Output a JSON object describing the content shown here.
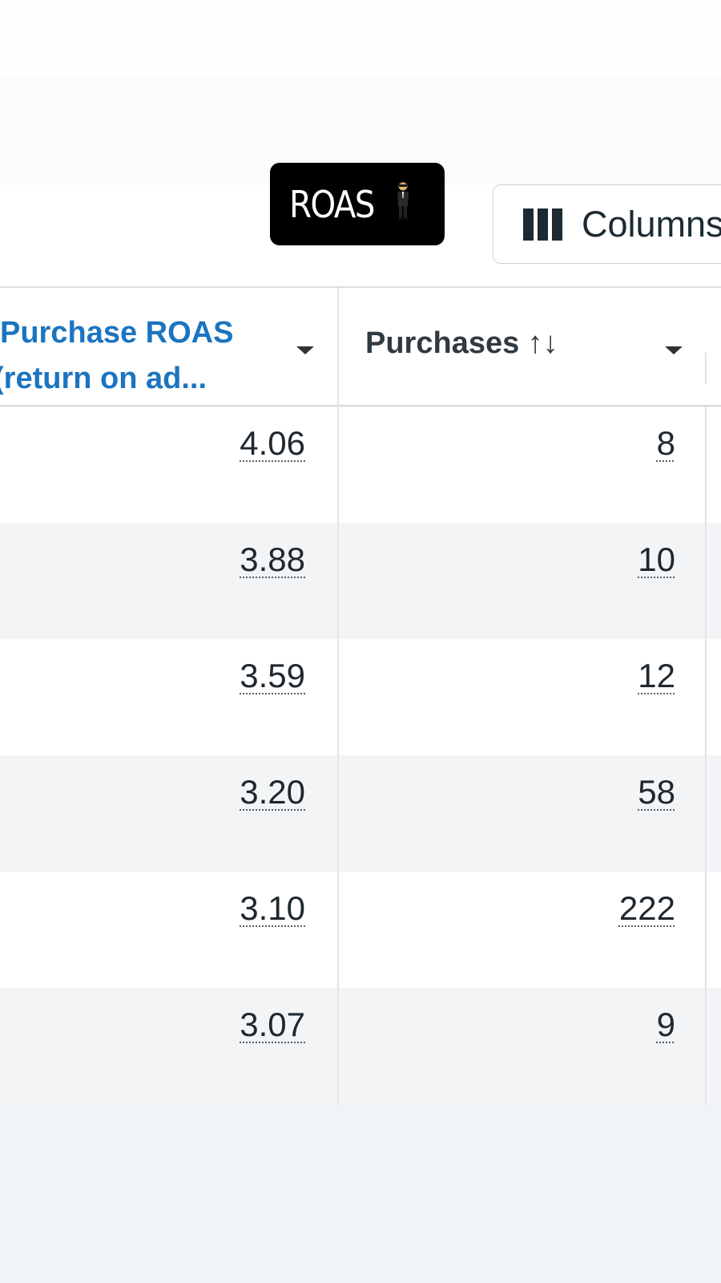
{
  "story_sticker": {
    "text": "ROAS",
    "emoji_icon": "man-in-suit-levitating-icon"
  },
  "toolbar": {
    "columns_label": "Columns",
    "columns_icon": "columns-icon"
  },
  "table": {
    "columns": [
      {
        "label_line1": "Purchase ROAS",
        "label_line2": "(return on ad...",
        "color": "#1b74c0"
      },
      {
        "label": "Purchases ↑↓",
        "color": "#303a41"
      }
    ],
    "rows": [
      {
        "roas": "4.06",
        "purchases": "8"
      },
      {
        "roas": "3.88",
        "purchases": "10"
      },
      {
        "roas": "3.59",
        "purchases": "12"
      },
      {
        "roas": "3.20",
        "purchases": "58"
      },
      {
        "roas": "3.10",
        "purchases": "222"
      },
      {
        "roas": "3.07",
        "purchases": "9"
      }
    ]
  },
  "colors": {
    "accent": "#1b74c0",
    "text": "#1c2b33",
    "row_alt": "#f2f4f6",
    "sticker_bg": "#000000"
  }
}
